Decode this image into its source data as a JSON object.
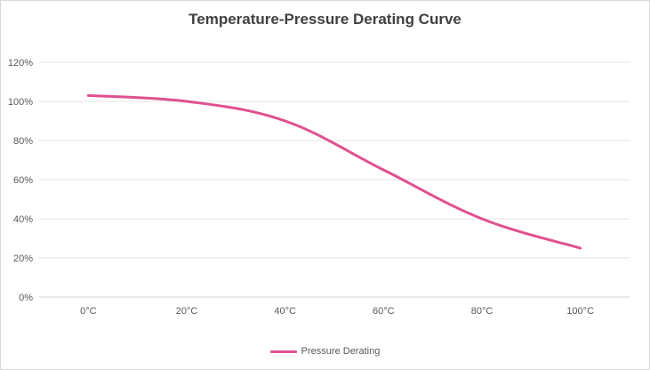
{
  "chart_data": {
    "type": "line",
    "title": "Temperature-Pressure Derating Curve",
    "categories": [
      "0°C",
      "20°C",
      "40°C",
      "60°C",
      "80°C",
      "100°C"
    ],
    "series": [
      {
        "name": "Pressure Derating",
        "values": [
          103,
          100,
          90,
          65,
          40,
          25
        ]
      }
    ],
    "xlabel": "",
    "ylabel": "",
    "ylim": [
      0,
      120
    ],
    "y_ticks": [
      0,
      20,
      40,
      60,
      80,
      100,
      120
    ],
    "y_tick_labels": [
      "0%",
      "20%",
      "40%",
      "60%",
      "80%",
      "100%",
      "120%"
    ],
    "line_color": "#e0508f",
    "grid": true,
    "legend_position": "bottom"
  }
}
